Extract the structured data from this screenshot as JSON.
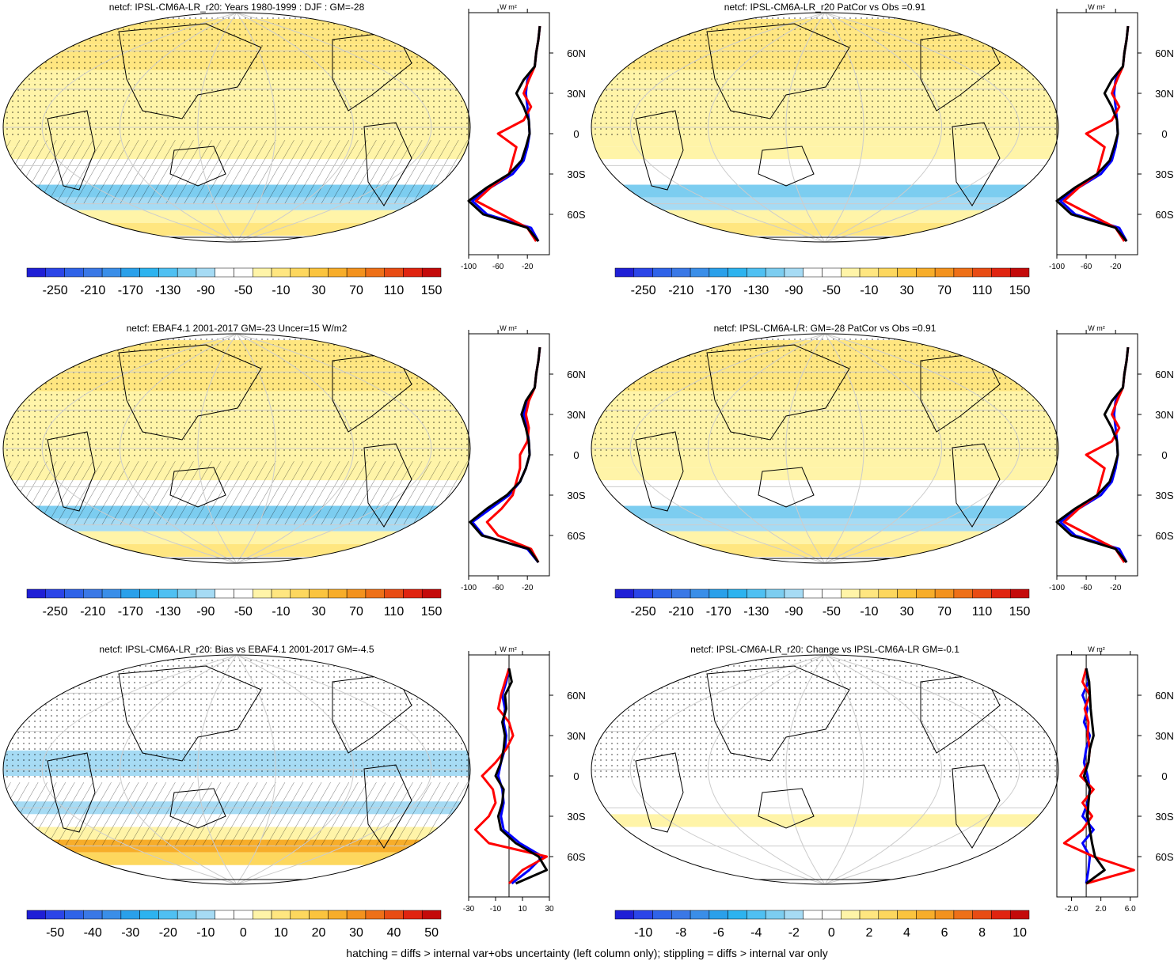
{
  "footer": "hatching = diffs > internal var+obs uncertainty (left column only); stippling = diffs > internal var only",
  "profile_unit": "W m²",
  "lat_ticks": [
    "60N",
    "30N",
    "0",
    "30S",
    "60S"
  ],
  "colors": {
    "model_line": "#000000",
    "obs_line": "#ff0000",
    "alt_line": "#0000ff",
    "coast": "#000000",
    "grid": "#cccccc"
  },
  "chart_data": [
    {
      "type": "heatmap",
      "title": "netcf: IPSL-CM6A-LR_r20: Years 1980-1999 : DJF : GM=-28",
      "colorbar_labels": [
        "-250",
        "-210",
        "-170",
        "-130",
        "-90",
        "-50",
        "-10",
        "30",
        "70",
        "110",
        "150"
      ],
      "colorbar_range": [
        -270,
        170
      ],
      "hatching": true,
      "profile": {
        "xticks": [
          "-100",
          "-60",
          "-20"
        ],
        "xlim": [
          -100,
          10
        ],
        "lat": [
          80,
          70,
          60,
          50,
          40,
          30,
          20,
          10,
          0,
          -10,
          -20,
          -30,
          -40,
          -50,
          -60,
          -70,
          -80
        ],
        "series": [
          {
            "values": [
              -3,
              -5,
              -8,
              -10,
              -20,
              -22,
              -20,
              -18,
              -17,
              -20,
              -25,
              -40,
              -70,
              -95,
              -75,
              -15,
              -5
            ]
          },
          {
            "values": [
              -3,
              -5,
              -8,
              -10,
              -18,
              -25,
              -15,
              -25,
              -60,
              -35,
              -40,
              -45,
              -70,
              -90,
              -55,
              -20,
              -8
            ]
          },
          {
            "values": [
              -3,
              -5,
              -8,
              -10,
              -25,
              -35,
              -25,
              -18,
              -17,
              -22,
              -28,
              -45,
              -75,
              -100,
              -80,
              -20,
              -5
            ]
          }
        ]
      }
    },
    {
      "type": "heatmap",
      "title": "netcf: IPSL-CM6A-LR_r20 PatCor vs Obs =0.91",
      "colorbar_labels": [
        "-250",
        "-210",
        "-170",
        "-130",
        "-90",
        "-50",
        "-10",
        "30",
        "70",
        "110",
        "150"
      ],
      "colorbar_range": [
        -270,
        170
      ],
      "hatching": false,
      "profile": {
        "xticks": [
          "-100",
          "-60",
          "-20"
        ],
        "xlim": [
          -100,
          10
        ],
        "lat": [
          80,
          70,
          60,
          50,
          40,
          30,
          20,
          10,
          0,
          -10,
          -20,
          -30,
          -40,
          -50,
          -60,
          -70,
          -80
        ],
        "series": [
          {
            "values": [
              -3,
              -5,
              -8,
              -10,
              -20,
              -22,
              -20,
              -18,
              -17,
              -20,
              -25,
              -40,
              -70,
              -95,
              -75,
              -15,
              -5
            ]
          },
          {
            "values": [
              -3,
              -5,
              -8,
              -10,
              -18,
              -25,
              -15,
              -25,
              -60,
              -35,
              -40,
              -45,
              -70,
              -90,
              -55,
              -20,
              -8
            ]
          },
          {
            "values": [
              -3,
              -5,
              -8,
              -10,
              -25,
              -35,
              -25,
              -18,
              -17,
              -22,
              -28,
              -45,
              -75,
              -100,
              -80,
              -20,
              -5
            ]
          }
        ]
      }
    },
    {
      "type": "heatmap",
      "title": "netcf: EBAF4.1 2001-2017 GM=-23 Uncer=15 W/m2",
      "colorbar_labels": [
        "-250",
        "-210",
        "-170",
        "-130",
        "-90",
        "-50",
        "-10",
        "30",
        "70",
        "110",
        "150"
      ],
      "colorbar_range": [
        -270,
        170
      ],
      "hatching": true,
      "profile": {
        "xticks": [
          "-100",
          "-60",
          "-20"
        ],
        "xlim": [
          -100,
          10
        ],
        "lat": [
          80,
          70,
          60,
          50,
          40,
          30,
          20,
          10,
          0,
          -10,
          -20,
          -30,
          -40,
          -50,
          -60,
          -70,
          -80
        ],
        "series": [
          {
            "values": [
              -3,
              -5,
              -8,
              -10,
              -20,
              -25,
              -20,
              -18,
              -17,
              -22,
              -30,
              -45,
              -70,
              -95,
              -80,
              -20,
              -5
            ]
          },
          {
            "values": [
              -3,
              -5,
              -8,
              -10,
              -18,
              -22,
              -18,
              -20,
              -30,
              -30,
              -35,
              -40,
              -55,
              -75,
              -60,
              -15,
              -5
            ]
          },
          {
            "values": [
              -3,
              -5,
              -8,
              -10,
              -22,
              -28,
              -22,
              -18,
              -17,
              -22,
              -30,
              -48,
              -75,
              -98,
              -82,
              -18,
              -5
            ]
          }
        ]
      }
    },
    {
      "type": "heatmap",
      "title": "netcf: IPSL-CM6A-LR: GM=-28 PatCor vs Obs =0.91",
      "colorbar_labels": [
        "-250",
        "-210",
        "-170",
        "-130",
        "-90",
        "-50",
        "-10",
        "30",
        "70",
        "110",
        "150"
      ],
      "colorbar_range": [
        -270,
        170
      ],
      "hatching": false,
      "profile": {
        "xticks": [
          "-100",
          "-60",
          "-20"
        ],
        "xlim": [
          -100,
          10
        ],
        "lat": [
          80,
          70,
          60,
          50,
          40,
          30,
          20,
          10,
          0,
          -10,
          -20,
          -30,
          -40,
          -50,
          -60,
          -70,
          -80
        ],
        "series": [
          {
            "values": [
              -3,
              -5,
              -8,
              -10,
              -20,
              -22,
              -20,
              -18,
              -17,
              -20,
              -25,
              -40,
              -70,
              -95,
              -75,
              -15,
              -5
            ]
          },
          {
            "values": [
              -3,
              -5,
              -8,
              -10,
              -18,
              -25,
              -15,
              -25,
              -60,
              -35,
              -40,
              -45,
              -70,
              -90,
              -55,
              -20,
              -8
            ]
          },
          {
            "values": [
              -3,
              -5,
              -8,
              -10,
              -25,
              -35,
              -25,
              -18,
              -17,
              -22,
              -28,
              -45,
              -75,
              -100,
              -80,
              -20,
              -5
            ]
          }
        ]
      }
    },
    {
      "type": "heatmap",
      "title": "netcf: IPSL-CM6A-LR_r20: Bias vs EBAF4.1 2001-2017 GM=-4.5",
      "colorbar_labels": [
        "-50",
        "-40",
        "-30",
        "-20",
        "-10",
        "0",
        "10",
        "20",
        "30",
        "40",
        "50"
      ],
      "colorbar_range": [
        -55,
        55
      ],
      "hatching": true,
      "profile": {
        "xticks": [
          "-30",
          "-10",
          "10",
          "30"
        ],
        "xlim": [
          -30,
          30
        ],
        "lat": [
          80,
          70,
          60,
          50,
          40,
          30,
          20,
          10,
          0,
          -10,
          -20,
          -30,
          -40,
          -50,
          -60,
          -70,
          -80
        ],
        "series": [
          {
            "values": [
              0,
              -2,
              -5,
              -3,
              -4,
              -2,
              -3,
              -6,
              -8,
              -5,
              -4,
              -6,
              -4,
              8,
              25,
              15,
              2
            ]
          },
          {
            "values": [
              0,
              -3,
              -6,
              -8,
              0,
              3,
              -2,
              -10,
              -20,
              -12,
              -10,
              -15,
              -25,
              -15,
              28,
              10,
              0
            ]
          },
          {
            "values": [
              0,
              2,
              -3,
              -2,
              -5,
              -3,
              -4,
              -6,
              -10,
              -4,
              -5,
              -8,
              -6,
              5,
              22,
              28,
              5
            ]
          }
        ]
      }
    },
    {
      "type": "heatmap",
      "title": "netcf: IPSL-CM6A-LR_r20: Change vs IPSL-CM6A-LR GM=-0.1",
      "colorbar_labels": [
        "-10",
        "-8",
        "-6",
        "-4",
        "-2",
        "0",
        "2",
        "4",
        "6",
        "8",
        "10"
      ],
      "colorbar_range": [
        -11,
        11
      ],
      "hatching": false,
      "profile": {
        "xticks": [
          "-2.0",
          "2.0",
          "6.0"
        ],
        "xlim": [
          -4,
          7
        ],
        "lat": [
          80,
          70,
          60,
          50,
          40,
          30,
          20,
          10,
          0,
          -10,
          -20,
          -30,
          -40,
          -50,
          -60,
          -70,
          -80
        ],
        "series": [
          {
            "values": [
              0,
              0.3,
              -0.5,
              0.2,
              -0.3,
              0.5,
              0,
              -0.3,
              0.2,
              0.5,
              0.2,
              -0.5,
              1.0,
              -0.5,
              0.5,
              0.3,
              0
            ]
          },
          {
            "values": [
              0,
              -0.5,
              0.5,
              -0.2,
              0.3,
              0.2,
              0.5,
              0.3,
              -0.8,
              1.0,
              -0.5,
              0.8,
              -0.5,
              -3,
              1,
              6.5,
              0
            ]
          },
          {
            "values": [
              0,
              0.4,
              0.5,
              0.6,
              0.8,
              1.0,
              0.5,
              0.3,
              -0.3,
              0.5,
              0.3,
              0.2,
              0.5,
              0.8,
              1.2,
              2.5,
              0
            ]
          }
        ]
      }
    }
  ]
}
